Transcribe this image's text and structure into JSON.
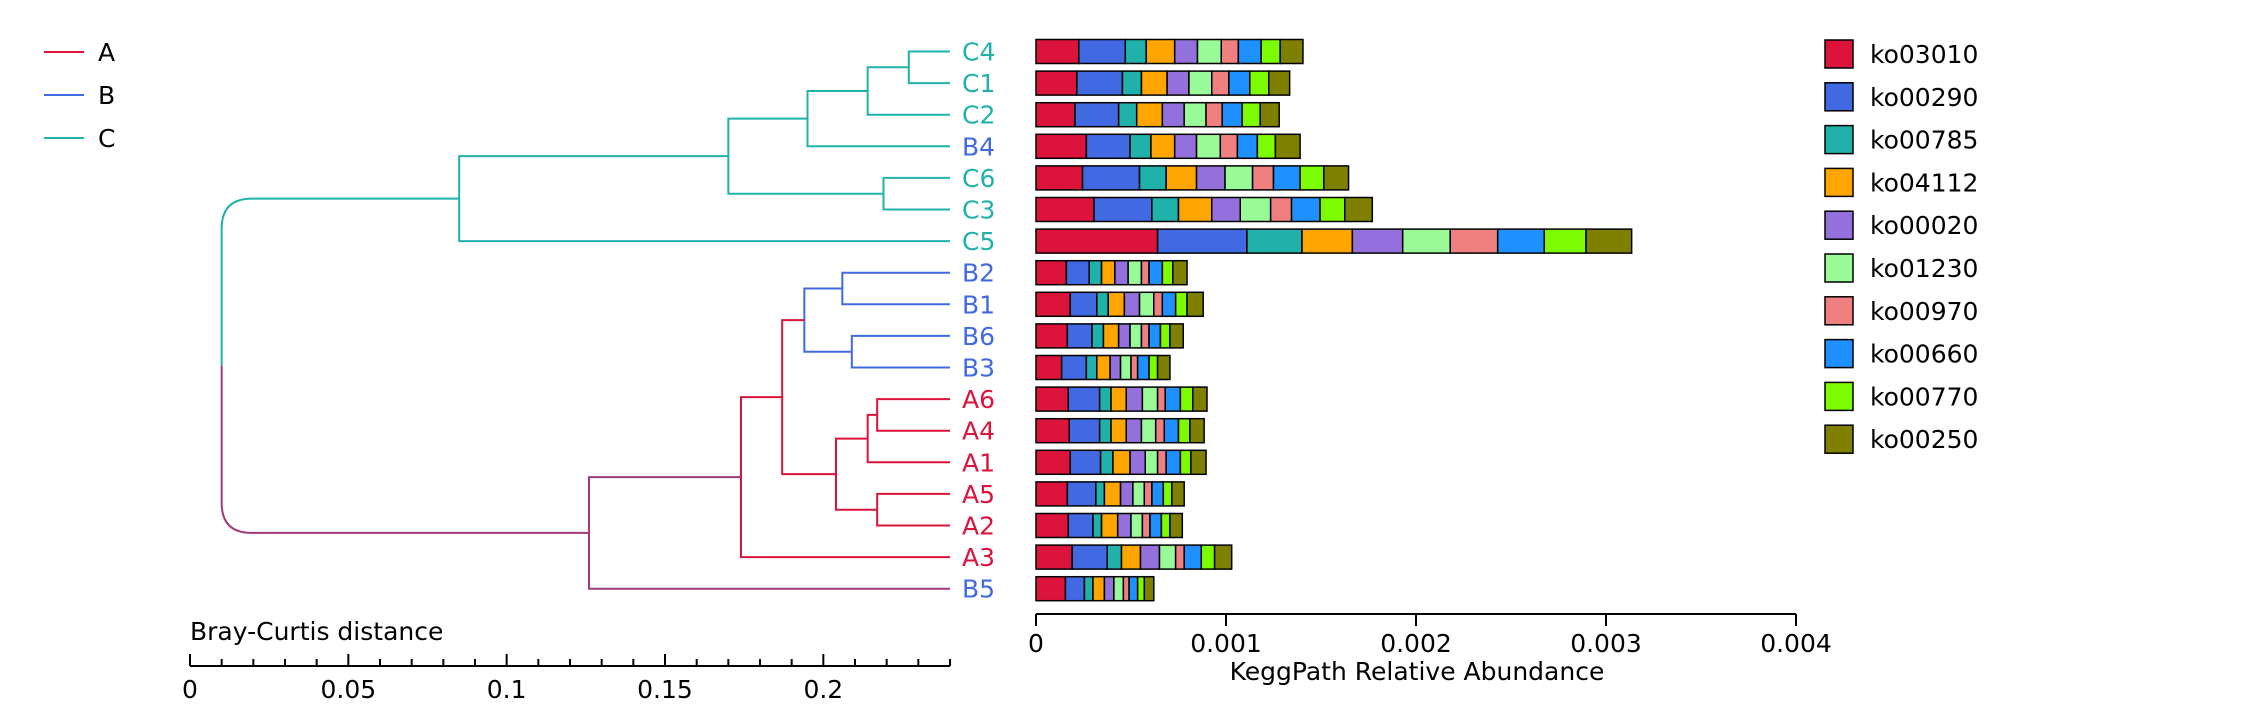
{
  "colors": {
    "A": "#dc143c",
    "B": "#4169e1",
    "C": "#20b2aa",
    "AB": "#a23a7a",
    "axis": "#000000"
  },
  "group_legend": [
    {
      "key": "A",
      "label": "A"
    },
    {
      "key": "B",
      "label": "B"
    },
    {
      "key": "C",
      "label": "C"
    }
  ],
  "chart_data": [
    {
      "type": "dendrogram",
      "method_label": "Bray-Curtis distance",
      "xlim": [
        0,
        0.24
      ],
      "ticks": [
        "0",
        "0.05",
        "0.1",
        "0.15",
        "0.2"
      ],
      "tick_values": [
        0,
        0.05,
        0.1,
        0.15,
        0.2
      ],
      "leaves": [
        {
          "name": "C4",
          "group": "C"
        },
        {
          "name": "C1",
          "group": "C"
        },
        {
          "name": "C2",
          "group": "C"
        },
        {
          "name": "B4",
          "group": "B"
        },
        {
          "name": "C6",
          "group": "C"
        },
        {
          "name": "C3",
          "group": "C"
        },
        {
          "name": "C5",
          "group": "C"
        },
        {
          "name": "B2",
          "group": "B"
        },
        {
          "name": "B1",
          "group": "B"
        },
        {
          "name": "B6",
          "group": "B"
        },
        {
          "name": "B3",
          "group": "B"
        },
        {
          "name": "A6",
          "group": "A"
        },
        {
          "name": "A4",
          "group": "A"
        },
        {
          "name": "A1",
          "group": "A"
        },
        {
          "name": "A5",
          "group": "A"
        },
        {
          "name": "A2",
          "group": "A"
        },
        {
          "name": "A3",
          "group": "A"
        },
        {
          "name": "B5",
          "group": "B"
        }
      ],
      "merges": [
        {
          "left": "C4",
          "right": "C1",
          "height": 0.013,
          "group": "C"
        },
        {
          "left": "m0",
          "right": "C2",
          "height": 0.026,
          "group": "C"
        },
        {
          "left": "m1",
          "right": "B4",
          "height": 0.045,
          "group": "C"
        },
        {
          "left": "C6",
          "right": "C3",
          "height": 0.021,
          "group": "C"
        },
        {
          "left": "m2",
          "right": "m3",
          "height": 0.07,
          "group": "C"
        },
        {
          "left": "m4",
          "right": "C5",
          "height": 0.155,
          "group": "C"
        },
        {
          "left": "B2",
          "right": "B1",
          "height": 0.034,
          "group": "B"
        },
        {
          "left": "B6",
          "right": "B3",
          "height": 0.031,
          "group": "B"
        },
        {
          "left": "m6",
          "right": "m7",
          "height": 0.046,
          "group": "B"
        },
        {
          "left": "A6",
          "right": "A4",
          "height": 0.023,
          "group": "A"
        },
        {
          "left": "m9",
          "right": "A1",
          "height": 0.026,
          "group": "A"
        },
        {
          "left": "A5",
          "right": "A2",
          "height": 0.023,
          "group": "A"
        },
        {
          "left": "m10",
          "right": "m11",
          "height": 0.036,
          "group": "A"
        },
        {
          "left": "m8",
          "right": "m12",
          "height": 0.053,
          "group": "A"
        },
        {
          "left": "m13",
          "right": "A3",
          "height": 0.066,
          "group": "A"
        },
        {
          "left": "m14",
          "right": "B5",
          "height": 0.114,
          "group": "AB"
        },
        {
          "left": "m5",
          "right": "m15",
          "height": 0.23,
          "group": "C"
        }
      ]
    },
    {
      "type": "bar",
      "stacked": true,
      "orientation": "horizontal",
      "xlabel": "KeggPath Relative Abundance",
      "xlim": [
        0,
        0.004
      ],
      "ticks": [
        "0",
        "0.001",
        "0.002",
        "0.003",
        "0.004"
      ],
      "tick_values": [
        0,
        0.001,
        0.002,
        0.003,
        0.004
      ],
      "categories": [
        "C4",
        "C1",
        "C2",
        "B4",
        "C6",
        "C3",
        "C5",
        "B2",
        "B1",
        "B6",
        "B3",
        "A6",
        "A4",
        "A1",
        "A5",
        "A2",
        "A3",
        "B5"
      ],
      "series": [
        {
          "name": "ko03010",
          "color": "#dc143c",
          "values": [
            0.000225,
            0.000215,
            0.000205,
            0.000265,
            0.000245,
            0.000305,
            0.00064,
            0.00016,
            0.00018,
            0.000165,
            0.000135,
            0.00017,
            0.000175,
            0.00018,
            0.000165,
            0.00017,
            0.00019,
            0.000155
          ]
        },
        {
          "name": "ko00290",
          "color": "#4169e1",
          "values": [
            0.000245,
            0.00024,
            0.00023,
            0.00023,
            0.0003,
            0.000305,
            0.00047,
            0.00012,
            0.00014,
            0.00013,
            0.00013,
            0.000165,
            0.00016,
            0.00016,
            0.00015,
            0.00013,
            0.000185,
            0.0001
          ]
        },
        {
          "name": "ko00785",
          "color": "#20b2aa",
          "values": [
            0.00011,
            0.0001,
            9.5e-05,
            0.00011,
            0.00014,
            0.00014,
            0.00029,
            6.5e-05,
            6e-05,
            6e-05,
            5.5e-05,
            6e-05,
            6e-05,
            6.5e-05,
            4.5e-05,
            4.5e-05,
            7.5e-05,
            4.5e-05
          ]
        },
        {
          "name": "ko04112",
          "color": "#ffa500",
          "values": [
            0.00015,
            0.000135,
            0.000135,
            0.000125,
            0.00016,
            0.000175,
            0.000265,
            7e-05,
            8.5e-05,
            8e-05,
            7e-05,
            8e-05,
            8e-05,
            9e-05,
            8.5e-05,
            8.5e-05,
            0.0001,
            6e-05
          ]
        },
        {
          "name": "ko00020",
          "color": "#9370db",
          "values": [
            0.00012,
            0.000115,
            0.000115,
            0.000115,
            0.00015,
            0.00015,
            0.000265,
            7e-05,
            8e-05,
            6e-05,
            5.5e-05,
            8.5e-05,
            8e-05,
            8e-05,
            6.5e-05,
            7e-05,
            0.0001,
            5e-05
          ]
        },
        {
          "name": "ko01230",
          "color": "#98fb98",
          "values": [
            0.000125,
            0.00012,
            0.000115,
            0.000125,
            0.000145,
            0.00016,
            0.00025,
            7e-05,
            7.5e-05,
            6e-05,
            5.5e-05,
            8e-05,
            7.5e-05,
            6.5e-05,
            6e-05,
            6e-05,
            8.5e-05,
            5e-05
          ]
        },
        {
          "name": "ko00970",
          "color": "#f08080",
          "values": [
            9e-05,
            9e-05,
            8.5e-05,
            9e-05,
            0.00011,
            0.00011,
            0.00025,
            4e-05,
            4.5e-05,
            4e-05,
            3.5e-05,
            4e-05,
            4.5e-05,
            4.5e-05,
            4e-05,
            4e-05,
            4.5e-05,
            3e-05
          ]
        },
        {
          "name": "ko00660",
          "color": "#1e90ff",
          "values": [
            0.00012,
            0.00011,
            0.000105,
            0.000105,
            0.00014,
            0.00015,
            0.000245,
            7e-05,
            7e-05,
            6e-05,
            6e-05,
            8e-05,
            7.5e-05,
            7.5e-05,
            6e-05,
            6e-05,
            9e-05,
            4.5e-05
          ]
        },
        {
          "name": "ko00770",
          "color": "#7cfc00",
          "values": [
            0.0001,
            0.0001,
            9.5e-05,
            9.5e-05,
            0.000125,
            0.00013,
            0.00022,
            5.5e-05,
            6e-05,
            5e-05,
            4.5e-05,
            6.5e-05,
            6e-05,
            5.5e-05,
            4.5e-05,
            4.5e-05,
            7e-05,
            3.5e-05
          ]
        },
        {
          "name": "ko00250",
          "color": "#808000",
          "values": [
            0.00012,
            0.00011,
            0.0001,
            0.00013,
            0.00013,
            0.000145,
            0.00024,
            7.5e-05,
            8.5e-05,
            7e-05,
            6.5e-05,
            7.5e-05,
            7.5e-05,
            8e-05,
            6.5e-05,
            6.5e-05,
            9e-05,
            5e-05
          ]
        }
      ]
    }
  ]
}
